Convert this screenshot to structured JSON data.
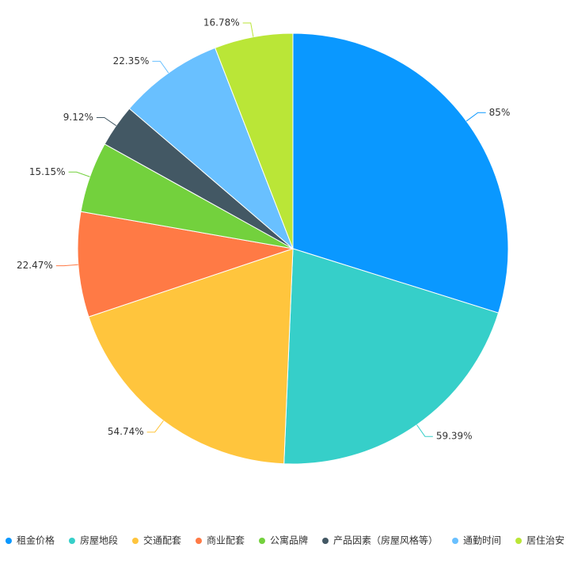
{
  "chart_data": {
    "type": "pie",
    "categories": [
      "租金价格",
      "房屋地段",
      "交通配套",
      "商业配套",
      "公寓品牌",
      "产品因素（房屋风格等）",
      "通勤时间",
      "居住治安"
    ],
    "values": [
      85,
      59.39,
      54.74,
      22.47,
      15.15,
      9.12,
      22.35,
      16.78
    ],
    "value_labels": [
      "85%",
      "59.39%",
      "54.74%",
      "22.47%",
      "15.15%",
      "9.12%",
      "22.35%",
      "16.78%"
    ],
    "colors": [
      "#0a98ff",
      "#36cfc9",
      "#ffc53d",
      "#ff7a45",
      "#73d13d",
      "#435864",
      "#69c0ff",
      "#bae637"
    ],
    "legend": "bottom"
  }
}
